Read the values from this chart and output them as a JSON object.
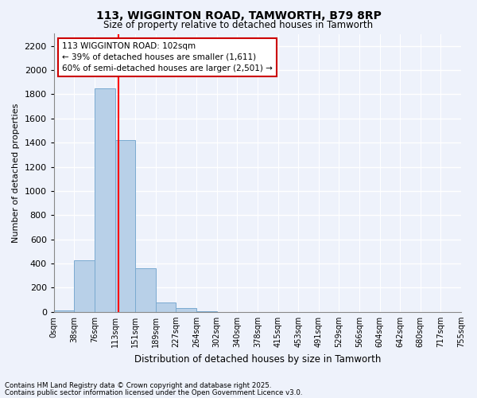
{
  "title": "113, WIGGINTON ROAD, TAMWORTH, B79 8RP",
  "subtitle": "Size of property relative to detached houses in Tamworth",
  "xlabel": "Distribution of detached houses by size in Tamworth",
  "ylabel": "Number of detached properties",
  "bar_values": [
    15,
    430,
    1850,
    1420,
    360,
    80,
    30,
    5,
    0,
    0,
    0,
    0,
    0,
    0,
    0,
    0,
    0,
    0,
    0,
    0
  ],
  "bin_labels": [
    "0sqm",
    "38sqm",
    "76sqm",
    "113sqm",
    "151sqm",
    "189sqm",
    "227sqm",
    "264sqm",
    "302sqm",
    "340sqm",
    "378sqm",
    "415sqm",
    "453sqm",
    "491sqm",
    "529sqm",
    "566sqm",
    "604sqm",
    "642sqm",
    "680sqm",
    "717sqm",
    "755sqm"
  ],
  "bar_color": "#b8d0e8",
  "bar_edge_color": "#7aaad0",
  "annotation_text": "113 WIGGINTON ROAD: 102sqm\n← 39% of detached houses are smaller (1,611)\n60% of semi-detached houses are larger (2,501) →",
  "annotation_box_color": "#ffffff",
  "annotation_box_edge_color": "#cc0000",
  "ylim": [
    0,
    2300
  ],
  "yticks": [
    0,
    200,
    400,
    600,
    800,
    1000,
    1200,
    1400,
    1600,
    1800,
    2000,
    2200
  ],
  "background_color": "#eef2fb",
  "grid_color": "#ffffff",
  "footer_line1": "Contains HM Land Registry data © Crown copyright and database right 2025.",
  "footer_line2": "Contains public sector information licensed under the Open Government Licence v3.0."
}
